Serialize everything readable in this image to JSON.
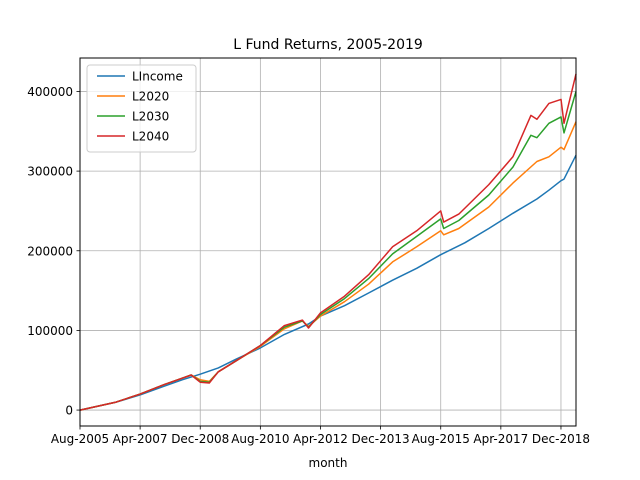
{
  "chart_data": {
    "type": "line",
    "title": "L Fund Returns, 2005-2019",
    "xlabel": "month",
    "ylabel": "",
    "grid": true,
    "legend_placement": "top-left",
    "x_domain": [
      "2005-08",
      "2019-05"
    ],
    "ylim": [
      -20000,
      442000
    ],
    "x_ticks": [
      "Aug-2005",
      "Apr-2007",
      "Dec-2008",
      "Aug-2010",
      "Apr-2012",
      "Dec-2013",
      "Aug-2015",
      "Apr-2017",
      "Dec-2018"
    ],
    "y_ticks": [
      "0",
      "100000",
      "200000",
      "300000",
      "400000"
    ],
    "y_tick_values": [
      0,
      100000,
      200000,
      300000,
      400000
    ],
    "series": [
      {
        "name": "LIncome",
        "color": "#1f77b4",
        "points": [
          [
            "2005-08",
            0
          ],
          [
            "2006-08",
            10000
          ],
          [
            "2007-04",
            19000
          ],
          [
            "2007-12",
            30000
          ],
          [
            "2008-06",
            38000
          ],
          [
            "2008-12",
            45000
          ],
          [
            "2009-06",
            53000
          ],
          [
            "2009-12",
            64000
          ],
          [
            "2010-08",
            78000
          ],
          [
            "2011-04",
            95000
          ],
          [
            "2011-12",
            108000
          ],
          [
            "2012-04",
            118000
          ],
          [
            "2012-12",
            131000
          ],
          [
            "2013-08",
            147000
          ],
          [
            "2014-04",
            163000
          ],
          [
            "2014-12",
            178000
          ],
          [
            "2015-08",
            195000
          ],
          [
            "2016-04",
            210000
          ],
          [
            "2016-12",
            228000
          ],
          [
            "2017-08",
            247000
          ],
          [
            "2018-04",
            265000
          ],
          [
            "2018-08",
            276000
          ],
          [
            "2018-12",
            288000
          ],
          [
            "2019-01",
            290000
          ],
          [
            "2019-05",
            320000
          ]
        ]
      },
      {
        "name": "L2020",
        "color": "#ff7f0e",
        "points": [
          [
            "2005-08",
            0
          ],
          [
            "2006-08",
            10000
          ],
          [
            "2007-04",
            20000
          ],
          [
            "2007-12",
            32000
          ],
          [
            "2008-06",
            40000
          ],
          [
            "2008-09",
            44000
          ],
          [
            "2008-12",
            38000
          ],
          [
            "2009-03",
            36000
          ],
          [
            "2009-06",
            48000
          ],
          [
            "2009-12",
            62000
          ],
          [
            "2010-08",
            80000
          ],
          [
            "2011-04",
            102000
          ],
          [
            "2011-10",
            112000
          ],
          [
            "2011-12",
            105000
          ],
          [
            "2012-04",
            118000
          ],
          [
            "2012-12",
            136000
          ],
          [
            "2013-08",
            158000
          ],
          [
            "2014-04",
            186000
          ],
          [
            "2014-12",
            205000
          ],
          [
            "2015-08",
            225000
          ],
          [
            "2015-09",
            220000
          ],
          [
            "2016-02",
            228000
          ],
          [
            "2016-12",
            255000
          ],
          [
            "2017-08",
            285000
          ],
          [
            "2018-04",
            312000
          ],
          [
            "2018-08",
            318000
          ],
          [
            "2018-12",
            330000
          ],
          [
            "2019-01",
            327000
          ],
          [
            "2019-05",
            362000
          ]
        ]
      },
      {
        "name": "L2030",
        "color": "#2ca02c",
        "points": [
          [
            "2005-08",
            0
          ],
          [
            "2006-08",
            10000
          ],
          [
            "2007-04",
            20000
          ],
          [
            "2007-12",
            32000
          ],
          [
            "2008-06",
            40000
          ],
          [
            "2008-09",
            44000
          ],
          [
            "2008-12",
            36000
          ],
          [
            "2009-03",
            35000
          ],
          [
            "2009-06",
            48000
          ],
          [
            "2009-12",
            62000
          ],
          [
            "2010-08",
            81000
          ],
          [
            "2011-04",
            104000
          ],
          [
            "2011-10",
            112000
          ],
          [
            "2011-12",
            104000
          ],
          [
            "2012-04",
            120000
          ],
          [
            "2012-12",
            140000
          ],
          [
            "2013-08",
            165000
          ],
          [
            "2014-04",
            196000
          ],
          [
            "2014-12",
            218000
          ],
          [
            "2015-08",
            240000
          ],
          [
            "2015-09",
            228000
          ],
          [
            "2016-02",
            238000
          ],
          [
            "2016-12",
            270000
          ],
          [
            "2017-08",
            305000
          ],
          [
            "2018-02",
            345000
          ],
          [
            "2018-04",
            342000
          ],
          [
            "2018-08",
            360000
          ],
          [
            "2018-12",
            368000
          ],
          [
            "2019-01",
            348000
          ],
          [
            "2019-05",
            400000
          ]
        ]
      },
      {
        "name": "L2040",
        "color": "#d62728",
        "points": [
          [
            "2005-08",
            0
          ],
          [
            "2006-08",
            10000
          ],
          [
            "2007-04",
            20000
          ],
          [
            "2007-12",
            32000
          ],
          [
            "2008-06",
            40000
          ],
          [
            "2008-09",
            44000
          ],
          [
            "2008-12",
            35000
          ],
          [
            "2009-03",
            34000
          ],
          [
            "2009-06",
            48000
          ],
          [
            "2009-12",
            62000
          ],
          [
            "2010-08",
            81000
          ],
          [
            "2011-04",
            106000
          ],
          [
            "2011-10",
            113000
          ],
          [
            "2011-12",
            103000
          ],
          [
            "2012-04",
            122000
          ],
          [
            "2012-12",
            143000
          ],
          [
            "2013-08",
            170000
          ],
          [
            "2014-04",
            205000
          ],
          [
            "2014-12",
            225000
          ],
          [
            "2015-08",
            250000
          ],
          [
            "2015-09",
            236000
          ],
          [
            "2016-02",
            246000
          ],
          [
            "2016-12",
            283000
          ],
          [
            "2017-08",
            318000
          ],
          [
            "2018-02",
            370000
          ],
          [
            "2018-04",
            365000
          ],
          [
            "2018-08",
            385000
          ],
          [
            "2018-12",
            390000
          ],
          [
            "2019-01",
            360000
          ],
          [
            "2019-05",
            422000
          ]
        ]
      }
    ]
  }
}
